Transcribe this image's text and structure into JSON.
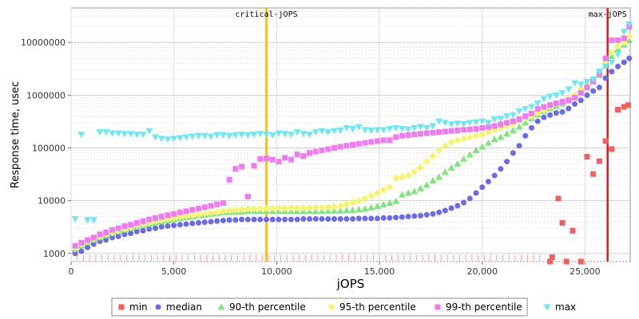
{
  "chart_data": {
    "type": "scatter",
    "title": "",
    "xlabel": "jOPS",
    "ylabel": "Response time, usec",
    "xlim": [
      0,
      27200
    ],
    "ylim": [
      700,
      45000000
    ],
    "yscale": "log",
    "grid": true,
    "legend_position": "bottom",
    "x_ticks": [
      0,
      5000,
      10000,
      15000,
      20000,
      25000
    ],
    "x_tick_labels": [
      "0",
      "5,000",
      "10,000",
      "15,000",
      "20,000",
      "25,000"
    ],
    "y_ticks": [
      1000,
      10000,
      100000,
      1000000,
      10000000
    ],
    "y_tick_labels": [
      "1000",
      "10000",
      "100000",
      "1000000",
      "10000000"
    ],
    "markers": [
      {
        "label": "critical-jOPS",
        "x": 9500,
        "color": "#ffb300"
      },
      {
        "label": "max-jOPS",
        "x": 26100,
        "color": "#e8141a"
      }
    ],
    "series": [
      {
        "name": "min",
        "color": "#f2605e",
        "shape": "square",
        "x": [
          23300,
          23400,
          23700,
          23900,
          24100,
          24400,
          24800,
          25100,
          25400,
          25700,
          26000,
          26300,
          26600,
          26900,
          27100
        ],
        "y": [
          700,
          850,
          11000,
          3800,
          700,
          2700,
          700,
          68000,
          32000,
          56000,
          135000,
          95000,
          530000,
          600000,
          650000
        ]
      },
      {
        "name": "median",
        "color": "#6b6bea",
        "shape": "circle",
        "x": [
          200,
          500,
          800,
          1100,
          1400,
          1700,
          2000,
          2300,
          2600,
          2900,
          3200,
          3500,
          3800,
          4100,
          4400,
          4700,
          5000,
          5300,
          5600,
          5900,
          6200,
          6500,
          6800,
          7100,
          7400,
          7700,
          8000,
          8300,
          8600,
          8900,
          9200,
          9500,
          9800,
          10100,
          10400,
          10700,
          11000,
          11300,
          11600,
          11900,
          12200,
          12500,
          12800,
          13100,
          13400,
          13700,
          14000,
          14300,
          14600,
          14900,
          15200,
          15500,
          15800,
          16100,
          16400,
          16700,
          17000,
          17300,
          17600,
          17900,
          18200,
          18500,
          18800,
          19100,
          19400,
          19700,
          20000,
          20300,
          20600,
          20900,
          21200,
          21500,
          21800,
          22100,
          22400,
          22700,
          23000,
          23300,
          23600,
          23900,
          24200,
          24500,
          24800,
          25100,
          25400,
          25700,
          26000,
          26300,
          26600,
          26900,
          27150
        ],
        "y": [
          1000,
          1100,
          1300,
          1500,
          1700,
          1800,
          2000,
          2100,
          2300,
          2400,
          2600,
          2700,
          2900,
          3000,
          3200,
          3300,
          3400,
          3500,
          3600,
          3700,
          3800,
          3900,
          4000,
          4100,
          4200,
          4300,
          4300,
          4400,
          4400,
          4400,
          4400,
          4400,
          4400,
          4400,
          4400,
          4400,
          4400,
          4500,
          4500,
          4500,
          4500,
          4500,
          4500,
          4500,
          4500,
          4500,
          4600,
          4600,
          4600,
          4600,
          4700,
          4700,
          4800,
          4900,
          5000,
          5100,
          5200,
          5400,
          5600,
          6000,
          6500,
          7200,
          8000,
          9200,
          11000,
          14000,
          18000,
          23000,
          30000,
          40000,
          55000,
          80000,
          110000,
          170000,
          240000,
          320000,
          380000,
          420000,
          460000,
          480000,
          560000,
          680000,
          800000,
          1000000,
          1200000,
          1400000,
          2100000,
          2800000,
          3500000,
          4200000,
          5000000
        ]
      },
      {
        "name": "90-th percentile",
        "color": "#7fe57f",
        "shape": "triangle-up",
        "x": [
          200,
          500,
          800,
          1100,
          1400,
          1700,
          2000,
          2300,
          2600,
          2900,
          3200,
          3500,
          3800,
          4100,
          4400,
          4700,
          5000,
          5300,
          5600,
          5900,
          6200,
          6500,
          6800,
          7100,
          7400,
          7700,
          8000,
          8300,
          8600,
          8900,
          9200,
          9500,
          9800,
          10100,
          10400,
          10700,
          11000,
          11300,
          11600,
          11900,
          12200,
          12500,
          12800,
          13100,
          13400,
          13700,
          14000,
          14300,
          14600,
          14900,
          15200,
          15500,
          15800,
          16100,
          16400,
          16700,
          17000,
          17300,
          17600,
          17900,
          18200,
          18500,
          18800,
          19100,
          19400,
          19700,
          20000,
          20300,
          20600,
          20900,
          21200,
          21500,
          21800,
          22100,
          22400,
          22700,
          23000,
          23300,
          23600,
          23900,
          24200,
          24500,
          24800,
          25100,
          25400,
          25700,
          26000,
          26300,
          26600,
          26900,
          27150
        ],
        "y": [
          1200,
          1400,
          1600,
          1800,
          2000,
          2200,
          2400,
          2600,
          2800,
          3000,
          3200,
          3400,
          3600,
          3800,
          4000,
          4200,
          4400,
          4600,
          4800,
          5000,
          5200,
          5400,
          5600,
          5800,
          6000,
          6100,
          6200,
          6200,
          6300,
          6300,
          6300,
          6300,
          6300,
          6300,
          6300,
          6300,
          6300,
          6300,
          6300,
          6300,
          6300,
          6400,
          6400,
          6400,
          6500,
          6600,
          6800,
          7000,
          7400,
          7800,
          8400,
          9000,
          9800,
          13000,
          14000,
          15000,
          17000,
          20000,
          24000,
          28000,
          35000,
          42000,
          50000,
          62000,
          75000,
          90000,
          105000,
          125000,
          145000,
          160000,
          185000,
          215000,
          250000,
          300000,
          360000,
          430000,
          500000,
          560000,
          620000,
          700000,
          800000,
          1000000,
          1250000,
          1550000,
          1900000,
          2400000,
          3600000,
          5500000,
          7500000,
          9000000,
          11000000
        ]
      },
      {
        "name": "95-th percentile",
        "color": "#f5f56a",
        "shape": "diamond",
        "x": [
          200,
          500,
          800,
          1100,
          1400,
          1700,
          2000,
          2300,
          2600,
          2900,
          3200,
          3500,
          3800,
          4100,
          4400,
          4700,
          5000,
          5300,
          5600,
          5900,
          6200,
          6500,
          6800,
          7100,
          7400,
          7700,
          8000,
          8300,
          8600,
          8900,
          9200,
          9500,
          9800,
          10100,
          10400,
          10700,
          11000,
          11300,
          11600,
          11900,
          12200,
          12500,
          12800,
          13100,
          13400,
          13700,
          14000,
          14300,
          14600,
          14900,
          15200,
          15500,
          15800,
          16100,
          16400,
          16700,
          17000,
          17300,
          17600,
          17900,
          18200,
          18500,
          18800,
          19100,
          19400,
          19700,
          20000,
          20300,
          20600,
          20900,
          21200,
          21500,
          21800,
          22100,
          22400,
          22700,
          23000,
          23300,
          23600,
          23900,
          24200,
          24500,
          24800,
          25100,
          25400,
          25700,
          26000,
          26300,
          26600,
          26900,
          27150
        ],
        "y": [
          1300,
          1500,
          1700,
          1900,
          2100,
          2300,
          2500,
          2700,
          2900,
          3100,
          3400,
          3600,
          3800,
          4000,
          4300,
          4500,
          4700,
          4900,
          5100,
          5300,
          5500,
          5700,
          5900,
          6100,
          6300,
          6500,
          6700,
          6800,
          7000,
          7000,
          7100,
          7100,
          7200,
          7200,
          7200,
          7200,
          7200,
          7300,
          7300,
          7400,
          7400,
          7500,
          7600,
          8000,
          8600,
          9300,
          10000,
          11000,
          12500,
          14000,
          16000,
          18000,
          27000,
          28000,
          30000,
          35000,
          42000,
          55000,
          70000,
          90000,
          110000,
          130000,
          140000,
          150000,
          160000,
          170000,
          180000,
          200000,
          220000,
          240000,
          260000,
          290000,
          320000,
          360000,
          400000,
          460000,
          520000,
          600000,
          680000,
          760000,
          860000,
          1000000,
          1300000,
          1650000,
          2000000,
          2600000,
          4200000,
          6500000,
          8500000,
          10000000,
          13000000
        ]
      },
      {
        "name": "99-th percentile",
        "color": "#f07af0",
        "shape": "square",
        "x": [
          200,
          500,
          800,
          1100,
          1400,
          1700,
          2000,
          2300,
          2600,
          2900,
          3200,
          3500,
          3800,
          4100,
          4400,
          4700,
          5000,
          5300,
          5600,
          5900,
          6200,
          6500,
          6800,
          7100,
          7400,
          7700,
          8000,
          8300,
          8600,
          8900,
          9200,
          9500,
          9800,
          10100,
          10400,
          10700,
          11000,
          11300,
          11600,
          11900,
          12200,
          12500,
          12800,
          13100,
          13400,
          13700,
          14000,
          14300,
          14600,
          14900,
          15200,
          15500,
          15800,
          16100,
          16400,
          16700,
          17000,
          17300,
          17600,
          17900,
          18200,
          18500,
          18800,
          19100,
          19400,
          19700,
          20000,
          20300,
          20600,
          20900,
          21200,
          21500,
          21800,
          22100,
          22400,
          22700,
          23000,
          23300,
          23600,
          23900,
          24200,
          24500,
          24800,
          25100,
          25400,
          25700,
          26000,
          26300,
          26600,
          26900,
          27150
        ],
        "y": [
          1400,
          1600,
          1800,
          2000,
          2300,
          2500,
          2800,
          3000,
          3300,
          3500,
          3800,
          4100,
          4400,
          4700,
          5000,
          5300,
          5600,
          6000,
          6300,
          6700,
          7100,
          7500,
          8000,
          8500,
          9000,
          25000,
          40000,
          44000,
          12000,
          46000,
          62000,
          63000,
          60000,
          55000,
          65000,
          60000,
          75000,
          70000,
          80000,
          85000,
          90000,
          95000,
          100000,
          105000,
          110000,
          115000,
          120000,
          125000,
          130000,
          135000,
          140000,
          140000,
          160000,
          170000,
          175000,
          180000,
          185000,
          190000,
          195000,
          200000,
          205000,
          210000,
          215000,
          220000,
          225000,
          230000,
          240000,
          250000,
          260000,
          280000,
          300000,
          320000,
          350000,
          400000,
          450000,
          550000,
          600000,
          650000,
          700000,
          750000,
          800000,
          900000,
          1100000,
          1400000,
          1800000,
          2500000,
          5000000,
          11000000,
          11000000,
          12000000,
          20000000
        ]
      },
      {
        "name": "max",
        "color": "#6be8f2",
        "shape": "triangle-down",
        "x": [
          200,
          500,
          800,
          1100,
          1400,
          1700,
          2000,
          2300,
          2600,
          2900,
          3200,
          3500,
          3800,
          4100,
          4400,
          4700,
          5000,
          5300,
          5600,
          5900,
          6200,
          6500,
          6800,
          7100,
          7400,
          7700,
          8000,
          8300,
          8600,
          8900,
          9200,
          9500,
          9800,
          10100,
          10400,
          10700,
          11000,
          11300,
          11600,
          11900,
          12200,
          12500,
          12800,
          13100,
          13400,
          13700,
          14000,
          14300,
          14600,
          14900,
          15200,
          15500,
          15800,
          16100,
          16400,
          16700,
          17000,
          17300,
          17600,
          17900,
          18200,
          18500,
          18800,
          19100,
          19400,
          19700,
          20000,
          20300,
          20600,
          20900,
          21200,
          21500,
          21800,
          22100,
          22400,
          22700,
          23000,
          23300,
          23600,
          23900,
          24200,
          24500,
          24800,
          25100,
          25400,
          25700,
          26000,
          26300,
          26600,
          26900,
          27150
        ],
        "y": [
          4500,
          180000,
          4300,
          4300,
          200000,
          200000,
          190000,
          190000,
          185000,
          185000,
          180000,
          180000,
          210000,
          160000,
          150000,
          145000,
          150000,
          155000,
          160000,
          165000,
          170000,
          170000,
          165000,
          175000,
          175000,
          170000,
          175000,
          180000,
          175000,
          180000,
          185000,
          180000,
          175000,
          190000,
          185000,
          180000,
          200000,
          185000,
          180000,
          200000,
          210000,
          200000,
          210000,
          215000,
          240000,
          230000,
          250000,
          220000,
          215000,
          220000,
          220000,
          230000,
          240000,
          230000,
          225000,
          240000,
          250000,
          240000,
          260000,
          320000,
          300000,
          280000,
          290000,
          285000,
          300000,
          310000,
          320000,
          300000,
          350000,
          360000,
          400000,
          420000,
          500000,
          550000,
          600000,
          700000,
          850000,
          950000,
          1000000,
          1100000,
          1300000,
          1700000,
          1600000,
          1800000,
          2000000,
          2800000,
          3500000,
          4200000,
          6000000,
          16000000,
          22000000
        ]
      }
    ]
  }
}
